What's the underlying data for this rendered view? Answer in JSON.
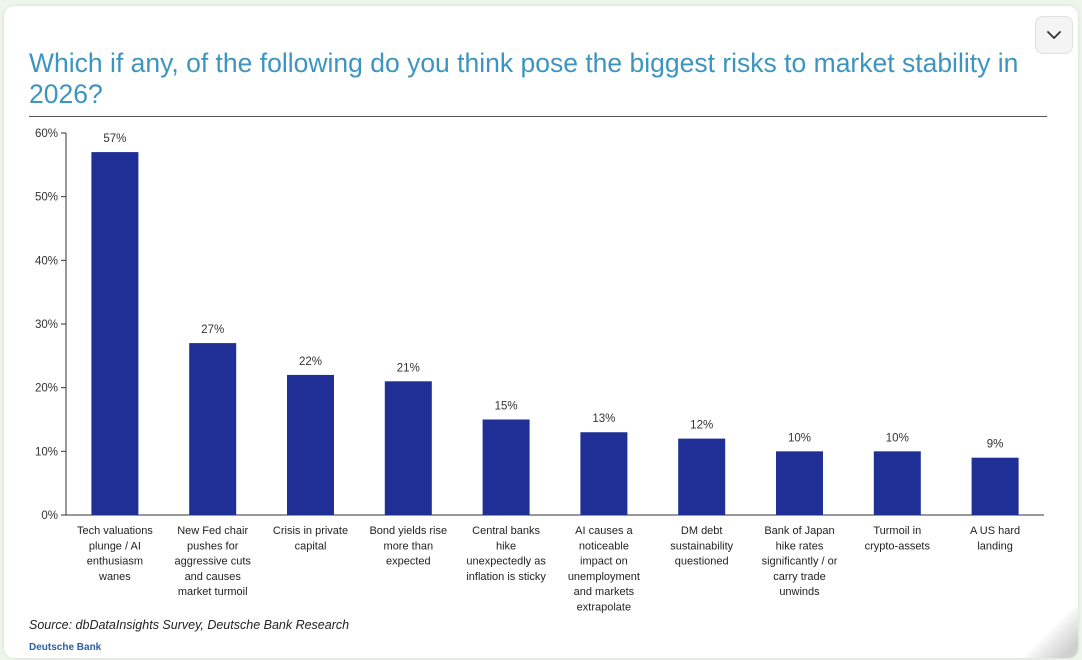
{
  "title": "Which if any, of the following do you think pose the biggest risks to market stability in 2026?",
  "source": "Source: dbDataInsights Survey, Deutsche Bank Research",
  "brand": "Deutsche Bank",
  "colors": {
    "bar": "#1f2f95",
    "title": "#3d95bf"
  },
  "icons": {
    "collapse": "chevron-down-icon"
  },
  "chart_data": {
    "type": "bar",
    "categories": [
      [
        "Tech valuations",
        "plunge / AI",
        "enthusiasm",
        "wanes"
      ],
      [
        "New Fed chair",
        "pushes for",
        "aggressive cuts",
        "and causes",
        "market turmoil"
      ],
      [
        "Crisis in private",
        "capital"
      ],
      [
        "Bond yields rise",
        "more than",
        "expected"
      ],
      [
        "Central banks",
        "hike",
        "unexpectedly as",
        "inflation is sticky"
      ],
      [
        "AI causes a",
        "noticeable",
        "impact on",
        "unemployment",
        "and markets",
        "extrapolate"
      ],
      [
        "DM debt",
        "sustainability",
        "questioned"
      ],
      [
        "Bank of Japan",
        "hike rates",
        "significantly / or",
        "carry trade",
        "unwinds"
      ],
      [
        "Turmoil in",
        "crypto-assets"
      ],
      [
        "A US hard",
        "landing"
      ]
    ],
    "values": [
      57,
      27,
      22,
      21,
      15,
      13,
      12,
      10,
      10,
      9
    ],
    "labels": [
      "57%",
      "27%",
      "22%",
      "21%",
      "15%",
      "13%",
      "12%",
      "10%",
      "10%",
      "9%"
    ],
    "yticks": [
      "0%",
      "10%",
      "20%",
      "30%",
      "40%",
      "50%",
      "60%"
    ],
    "ylim": [
      0,
      60
    ],
    "grid": false,
    "xlabel": "",
    "ylabel": ""
  }
}
